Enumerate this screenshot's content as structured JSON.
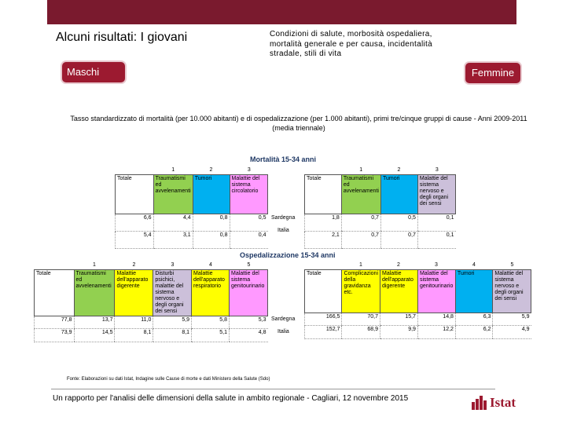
{
  "slide": {
    "title": "Alcuni risultati: I giovani",
    "subtitle": "Condizioni di salute, morbosità ospedaliera, mortalità generale e per causa, incidentalità stradale, stili di vita",
    "male_label": "Maschi",
    "female_label": "Femmine",
    "caption": "Tasso standardizzato di mortalità (per 10.000 abitanti) e di ospedalizzazione (per 1.000 abitanti), primi tre/cinque gruppi di cause - Anni 2009-2011 (media triennale)",
    "source": "Fonte: Elaborazioni su dati Istat, Indagine sulle Cause di morte e dati Ministero della Salute (Sdo)",
    "footer": "Un rapporto per l'analisi delle dimensioni della salute in ambito regionale - Cagliari, 12 novembre 2015",
    "logo_text": "Istat"
  },
  "mortality": {
    "title": "Mortalità 15-34 anni",
    "regions": [
      "Sardegna",
      "Italia"
    ],
    "male": {
      "index": [
        "1",
        "2",
        "3"
      ],
      "headers": [
        "Totale",
        "Traumatismi ed avvelenamenti",
        "Tumori",
        "Malattie del sistema circolatorio"
      ],
      "rows": [
        [
          "6,6",
          "4,4",
          "0,8",
          "0,5"
        ],
        [
          "5,4",
          "3,1",
          "0,8",
          "0,4"
        ]
      ]
    },
    "female": {
      "index": [
        "1",
        "2",
        "3"
      ],
      "headers": [
        "Totale",
        "Traumatismi ed avvelenamenti",
        "Tumori",
        "Malattie del sistema nervoso e degli organi dei sensi"
      ],
      "rows": [
        [
          "1,8",
          "0,7",
          "0,5",
          "0,1"
        ],
        [
          "2,1",
          "0,7",
          "0,7",
          "0,1"
        ]
      ]
    }
  },
  "hospitalization": {
    "title": "Ospedalizzazione 15-34 anni",
    "male": {
      "index": [
        "1",
        "2",
        "3",
        "4",
        "5"
      ],
      "headers": [
        "Totale",
        "Traumatismi ed avvelenamenti",
        "Malattie dell'apparato digerente",
        "Disturbi psichici, malattie del sistema nervoso e degli organi dei sensi",
        "Malattie dell'apparato respiratorio",
        "Malattie del sistema genitourinario"
      ],
      "rows": [
        [
          "77,8",
          "13,7",
          "11,0",
          "5,9",
          "5,8",
          "5,3"
        ],
        [
          "73,9",
          "14,5",
          "8,1",
          "8,1",
          "5,1",
          "4,8"
        ]
      ]
    },
    "female": {
      "index": [
        "1",
        "2",
        "3",
        "4",
        "5"
      ],
      "headers": [
        "Totale",
        "Complicazioni della gravidanza etc.",
        "Malattie dell'apparato digerente",
        "Malattie del sistema genitourinario",
        "Tumori",
        "Malattie del sistema nervoso e degli organi dei sensi"
      ],
      "rows": [
        [
          "166,5",
          "70,7",
          "15,7",
          "14,8",
          "6,3",
          "5,9"
        ],
        [
          "152,7",
          "68,9",
          "9,9",
          "12,2",
          "6,2",
          "4,9"
        ]
      ]
    }
  }
}
